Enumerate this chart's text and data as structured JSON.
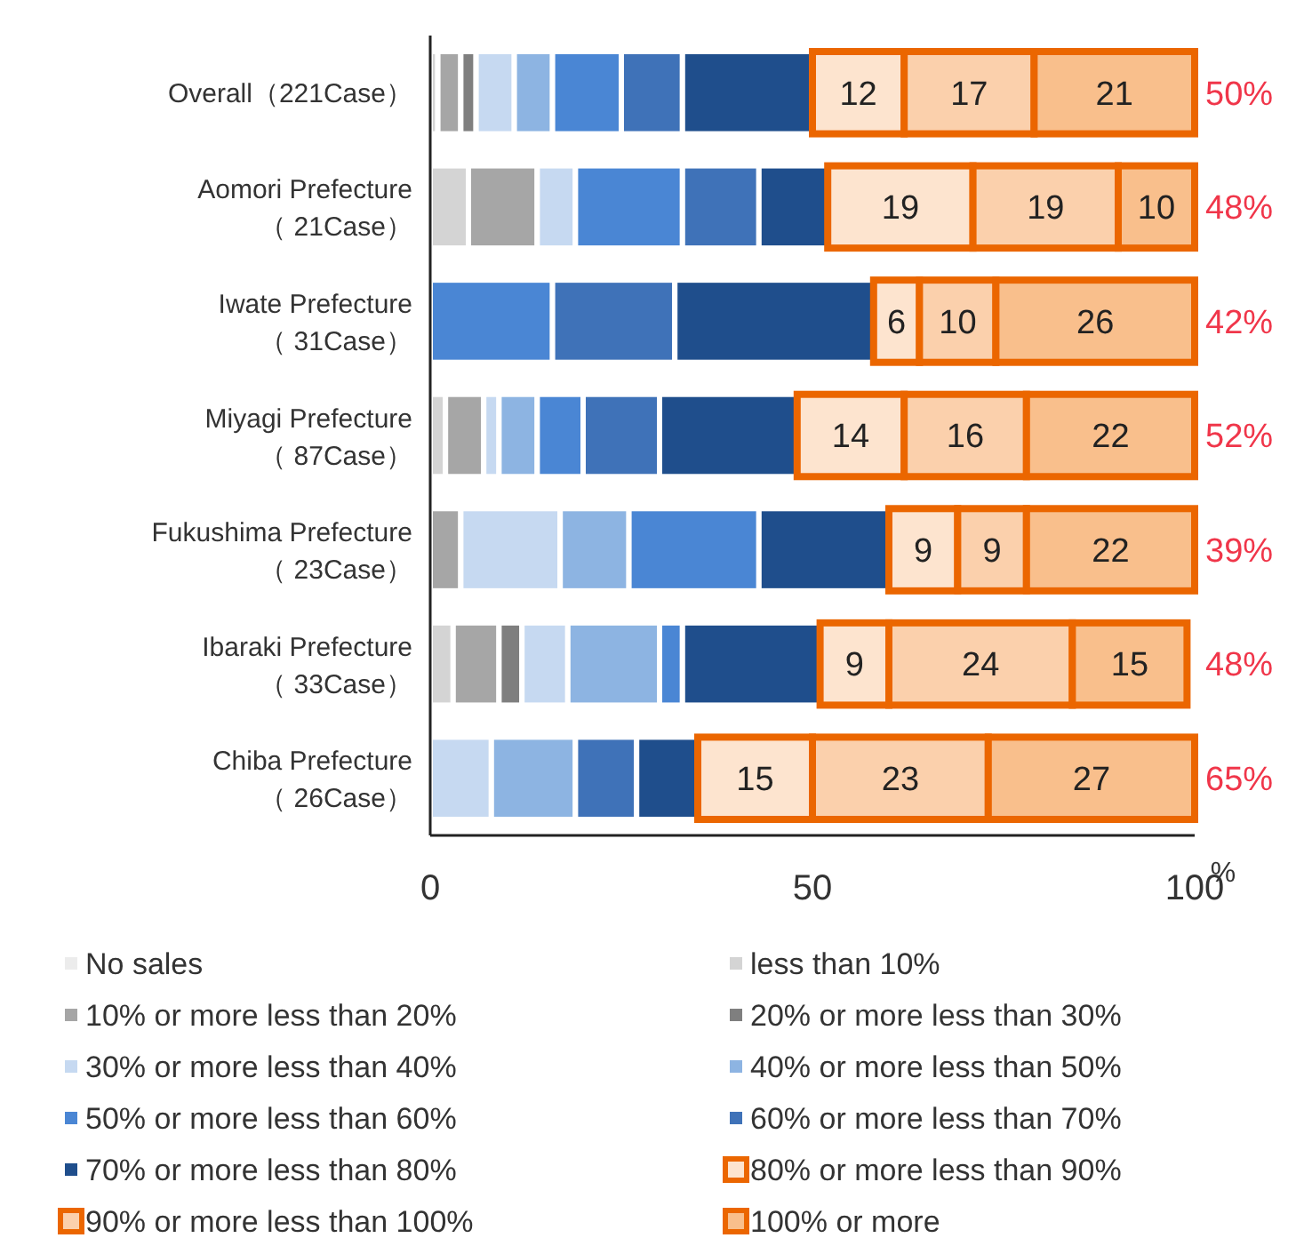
{
  "chart_data": {
    "type": "bar",
    "orientation": "horizontal",
    "stacked": true,
    "categories": [
      "Overall（221Case）",
      "Aomori Prefecture\n（ 21Case）",
      "Iwate Prefecture\n（ 31Case）",
      "Miyagi Prefecture\n（ 87Case）",
      "Fukushima Prefecture\n（ 23Case）",
      "Ibaraki Prefecture\n（ 33Case）",
      "Chiba Prefecture\n（ 26Case）"
    ],
    "xlim": [
      0,
      100
    ],
    "xticks": [
      0,
      50,
      100
    ],
    "xlabel": "%",
    "grid": false,
    "legend": "bottom",
    "series": [
      {
        "name": "No sales",
        "color": "#ececec",
        "values": [
          0,
          0,
          0,
          0,
          0,
          0,
          0
        ]
      },
      {
        "name": "less than 10%",
        "color": "#d4d4d4",
        "values": [
          1,
          5,
          0,
          2,
          0,
          3,
          0
        ]
      },
      {
        "name": "10% or more less than 20%",
        "color": "#a6a6a6",
        "values": [
          3,
          9,
          0,
          5,
          4,
          6,
          0
        ]
      },
      {
        "name": "20% or more less than 30%",
        "color": "#7f7f7f",
        "values": [
          2,
          0,
          0,
          0,
          0,
          3,
          0
        ]
      },
      {
        "name": "30% or more less than 40%",
        "color": "#c6d9f1",
        "values": [
          5,
          5,
          0,
          2,
          13,
          6,
          8
        ]
      },
      {
        "name": "40% or more less than 50%",
        "color": "#8db4e2",
        "values": [
          5,
          0,
          0,
          5,
          9,
          12,
          11
        ]
      },
      {
        "name": "50% or more less than 60%",
        "color": "#4a86d4",
        "values": [
          9,
          14,
          16,
          6,
          17,
          3,
          0
        ]
      },
      {
        "name": "60% or more less than 70%",
        "color": "#3f72b8",
        "values": [
          8,
          10,
          16,
          10,
          0,
          0,
          8
        ]
      },
      {
        "name": "70% or more less than 80%",
        "color": "#1f4e8c",
        "values": [
          17,
          9,
          26,
          18,
          17,
          18,
          8
        ]
      },
      {
        "name": "80% or more less than 90%",
        "color": "#fde4cf",
        "values": [
          12,
          19,
          6,
          14,
          9,
          9,
          15
        ],
        "value_labels": [
          "12",
          "19",
          "6",
          "14",
          "9",
          "9",
          "15"
        ]
      },
      {
        "name": "90% or more less than 100%",
        "color": "#fbd0ac",
        "values": [
          17,
          19,
          10,
          16,
          9,
          24,
          23
        ],
        "value_labels": [
          "17",
          "19",
          "10",
          "16",
          "9",
          "24",
          "23"
        ]
      },
      {
        "name": "100% or more",
        "color": "#f9bf8c",
        "values": [
          21,
          10,
          26,
          22,
          22,
          15,
          27
        ],
        "value_labels": [
          "21",
          "10",
          "26",
          "22",
          "22",
          "15",
          "27"
        ]
      }
    ],
    "annotations": [
      "50%",
      "48%",
      "42%",
      "52%",
      "39%",
      "48%",
      "65%"
    ]
  }
}
